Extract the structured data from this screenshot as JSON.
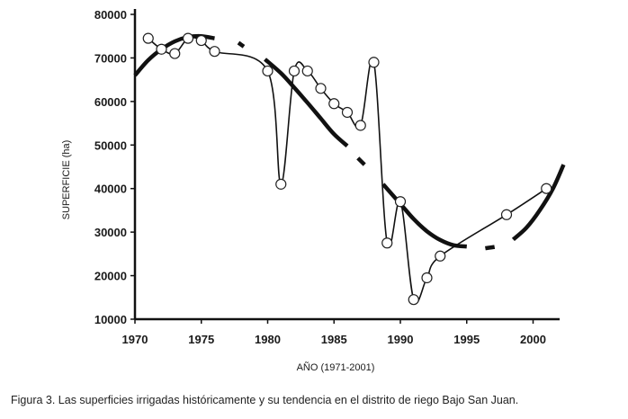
{
  "caption": "Figura 3.  Las superficies irrigadas históricamente y su tendencia en el distrito de riego Bajo San Juan.",
  "chart_data": {
    "type": "line",
    "xlabel": "AÑO (1971-2001)",
    "ylabel": "SUPERFICIE (ha)",
    "xlim": [
      1970,
      2002
    ],
    "ylim": [
      10000,
      80000
    ],
    "x_ticks": [
      1970,
      1975,
      1980,
      1985,
      1990,
      1995,
      2000
    ],
    "y_ticks": [
      10000,
      20000,
      30000,
      40000,
      50000,
      60000,
      70000,
      80000
    ],
    "grid": false,
    "series": [
      {
        "role": "observed",
        "style": "thin line with open circle markers",
        "x": [
          1971,
          1972,
          1973,
          1974,
          1975,
          1976,
          1980,
          1981,
          1982,
          1983,
          1984,
          1985,
          1986,
          1987,
          1988,
          1989,
          1990,
          1991,
          1992,
          1993,
          1998,
          2001
        ],
        "y": [
          74500,
          72000,
          71000,
          74500,
          74000,
          71500,
          67000,
          41000,
          67000,
          67000,
          63000,
          59500,
          57500,
          54500,
          69000,
          27500,
          37000,
          14500,
          19500,
          24500,
          34000,
          40000
        ],
        "markers": [
          true,
          true,
          true,
          true,
          true,
          true,
          true,
          true,
          true,
          true,
          true,
          true,
          true,
          true,
          true,
          true,
          true,
          true,
          true,
          true,
          true,
          true
        ]
      },
      {
        "role": "trend",
        "style": "thick dashed curve",
        "segments": [
          {
            "x": [
              1970,
              1971,
              1972,
              1973,
              1974,
              1975,
              1976
            ],
            "y": [
              66000,
              69500,
              72000,
              73800,
              74800,
              75000,
              74500
            ]
          },
          {
            "x": [
              1977.8,
              1978.2
            ],
            "y": [
              73500,
              72600
            ]
          },
          {
            "x": [
              1979.8,
              1981,
              1982,
              1983,
              1984,
              1985,
              1986
            ],
            "y": [
              69700,
              66500,
              63200,
              59700,
              56100,
              52500,
              49800
            ]
          },
          {
            "x": [
              1986.8,
              1987.3
            ],
            "y": [
              47000,
              45500
            ]
          },
          {
            "x": [
              1988.7,
              1990,
              1991,
              1992,
              1993,
              1994,
              1995
            ],
            "y": [
              41000,
              36500,
              33000,
              30200,
              28200,
              27000,
              26700
            ]
          },
          {
            "x": [
              1996.4,
              1997.1
            ],
            "y": [
              26300,
              26600
            ]
          },
          {
            "x": [
              1998.5,
              1999.5,
              2000.5,
              2001.5,
              2002.3
            ],
            "y": [
              28300,
              31000,
              35000,
              40000,
              45500
            ]
          }
        ]
      }
    ]
  }
}
